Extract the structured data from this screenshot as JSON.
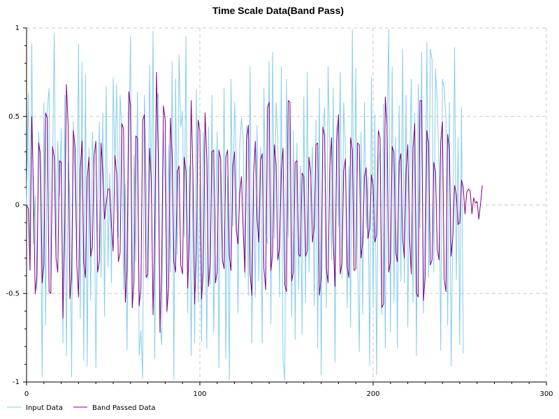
{
  "chart_data": {
    "type": "line",
    "title": "Time Scale Data(Band Pass)",
    "xlabel": "",
    "ylabel": "",
    "xlim": [
      0,
      300
    ],
    "ylim": [
      -1,
      1
    ],
    "x_ticks": [
      "0",
      "100",
      "200",
      "300"
    ],
    "y_ticks": [
      "-1",
      "-0.5",
      "0",
      "0.5",
      "1"
    ],
    "grid": true,
    "legend_position": "bottom-left",
    "x_start": 0,
    "x_step": 1,
    "series": [
      {
        "name": "Input Data",
        "color": "#87ceeb",
        "values": [
          0.0,
          0.63,
          -0.36,
          0.91,
          -0.22,
          0.05,
          -0.48,
          0.41,
          0.12,
          -0.97,
          0.58,
          -0.68,
          0.54,
          0.66,
          -0.41,
          0.22,
          0.97,
          -0.28,
          0.36,
          0.05,
          0.43,
          -0.78,
          0.62,
          -0.85,
          0.24,
          0.05,
          -0.97,
          0.47,
          0.12,
          -0.31,
          0.91,
          -0.64,
          0.81,
          -0.88,
          0.74,
          -0.91,
          0.32,
          -0.54,
          0.41,
          0.12,
          -0.92,
          -0.06,
          0.47,
          -0.41,
          0.52,
          -0.63,
          0.67,
          -0.35,
          0.18,
          -0.44,
          0.72,
          0.23,
          0.68,
          -0.18,
          0.62,
          0.41,
          -0.48,
          0.12,
          -0.82,
          0.34,
          0.95,
          -0.58,
          0.28,
          -0.32,
          0.64,
          -0.85,
          -0.71,
          -0.98,
          0.62,
          0.18,
          -0.42,
          0.79,
          0.01,
          0.98,
          -0.87,
          0.58,
          0.63,
          -0.66,
          -0.79,
          0.41,
          0.12,
          -0.61,
          0.34,
          -0.38,
          0.81,
          -0.99,
          0.71,
          -0.28,
          0.85,
          0.44,
          0.53,
          -0.18,
          0.95,
          -0.61,
          0.22,
          -0.85,
          0.21,
          -0.78,
          0.65,
          -0.55,
          0.12,
          -0.77,
          0.41,
          0.01,
          -0.81,
          0.44,
          -0.45,
          0.62,
          -0.72,
          -0.11,
          0.41,
          -0.92,
          0.28,
          -0.33,
          0.66,
          -0.87,
          0.16,
          -0.99,
          0.71,
          -0.12,
          0.58,
          0.26,
          -0.61,
          0.33,
          0.49,
          0.38,
          -0.41,
          0.45,
          -0.51,
          0.78,
          -0.78,
          0.18,
          -0.52,
          0.45,
          -0.43,
          0.33,
          -0.78,
          0.66,
          -0.16,
          -0.22,
          0.81,
          -0.67,
          0.86,
          -0.19,
          0.58,
          0.37,
          -0.52,
          0.78,
          -0.88,
          -0.99,
          0.71,
          -0.18,
          0.58,
          -0.63,
          0.42,
          -0.76,
          0.35,
          -0.48,
          0.22,
          -0.73,
          0.61,
          -0.55,
          0.75,
          -0.38,
          0.12,
          0.33,
          -0.57,
          0.48,
          -0.81,
          0.66,
          -0.96,
          0.41,
          0.55,
          -0.58,
          0.78,
          0.28,
          -0.31,
          0.66,
          -0.89,
          0.45,
          -0.12,
          0.75,
          -0.41,
          0.58,
          0.32,
          -0.58,
          0.22,
          -0.69,
          0.99,
          -0.33,
          0.77,
          -0.28,
          -0.83,
          0.41,
          -0.62,
          0.58,
          -0.13,
          0.16,
          -0.91,
          0.72,
          -0.58,
          0.51,
          -0.96,
          0.22,
          0.31,
          -0.62,
          0.57,
          -0.81,
          0.41,
          0.99,
          -0.72,
          0.78,
          -0.55,
          0.38,
          -0.81,
          0.56,
          -0.43,
          0.88,
          -0.44,
          0.62,
          -0.69,
          0.14,
          0.71,
          -0.55,
          0.52,
          -0.85,
          0.68,
          -0.13,
          0.86,
          -0.61,
          -0.08,
          0.92,
          -0.41,
          0.88,
          0.82,
          -0.38,
          0.77,
          0.58,
          0.24,
          -0.82,
          0.71,
          0.66,
          0.49,
          -0.68,
          0.58,
          -0.91,
          -0.12,
          0.89,
          -0.42,
          0.38,
          -0.79,
          0.55,
          -0.84
        ]
      },
      {
        "name": "Band Passed Data",
        "color": "#800080",
        "values": [
          0.0,
          -0.02,
          -0.37,
          0.5,
          0.08,
          -0.5,
          -0.4,
          0.35,
          0.29,
          -0.44,
          -0.34,
          0.52,
          0.49,
          -0.49,
          -0.5,
          0.33,
          0.27,
          -0.3,
          -0.38,
          0.25,
          0.24,
          -0.64,
          -0.16,
          0.68,
          0.45,
          -0.53,
          -0.41,
          0.42,
          0.33,
          -0.34,
          -0.52,
          0.2,
          0.36,
          -0.32,
          -0.41,
          0.15,
          0.27,
          -0.29,
          -0.24,
          0.28,
          0.36,
          -0.38,
          -0.32,
          0.35,
          0.19,
          -0.08,
          0.01,
          0.09,
          0.09,
          -0.12,
          -0.26,
          0.28,
          0.17,
          -0.32,
          -0.27,
          0.46,
          0.43,
          -0.55,
          -0.37,
          0.64,
          0.56,
          -0.58,
          -0.43,
          0.39,
          0.38,
          -0.57,
          -0.47,
          0.48,
          0.51,
          -0.41,
          -0.39,
          0.32,
          0.13,
          -0.62,
          -0.17,
          0.75,
          0.28,
          -0.72,
          -0.33,
          0.56,
          0.48,
          -0.6,
          -0.47,
          0.49,
          0.28,
          -0.32,
          -0.38,
          0.19,
          0.22,
          -0.34,
          -0.39,
          0.27,
          0.19,
          -0.47,
          -0.16,
          0.59,
          0.18,
          -0.56,
          -0.28,
          0.48,
          0.42,
          -0.53,
          -0.38,
          0.52,
          0.26,
          -0.46,
          -0.32,
          0.3,
          0.31,
          -0.44,
          -0.38,
          0.31,
          0.26,
          -0.31,
          -0.36,
          0.27,
          0.31,
          -0.29,
          -0.37,
          0.22,
          0.3,
          -0.14,
          -0.22,
          0.06,
          0.16,
          -0.14,
          -0.38,
          0.37,
          0.45,
          -0.39,
          -0.51,
          0.17,
          0.36,
          -0.08,
          -0.21,
          0.25,
          0.29,
          -0.36,
          -0.48,
          0.55,
          0.58,
          -0.37,
          -0.28,
          0.34,
          0.23,
          -0.31,
          -0.24,
          0.19,
          0.32,
          -0.45,
          -0.49,
          0.59,
          0.58,
          -0.43,
          -0.38,
          0.24,
          0.25,
          -0.28,
          -0.29,
          0.18,
          0.16,
          -0.29,
          -0.26,
          0.27,
          0.18,
          -0.21,
          -0.12,
          0.34,
          0.35,
          -0.51,
          -0.41,
          0.44,
          0.39,
          -0.36,
          -0.44,
          0.22,
          0.38,
          -0.22,
          -0.46,
          0.36,
          0.51,
          -0.39,
          -0.33,
          0.19,
          0.26,
          -0.35,
          -0.41,
          0.38,
          0.31,
          -0.37,
          -0.36,
          0.35,
          0.34,
          -0.3,
          -0.21,
          0.16,
          0.21,
          -0.19,
          -0.13,
          0.17,
          0.11,
          -0.21,
          -0.17,
          0.42,
          0.38,
          -0.58,
          -0.56,
          0.61,
          0.45,
          -0.38,
          -0.32,
          0.33,
          0.3,
          -0.27,
          -0.32,
          0.24,
          0.29,
          -0.19,
          -0.3,
          0.19,
          0.34,
          -0.18,
          -0.39,
          0.32,
          0.46,
          -0.5,
          -0.52,
          0.59,
          0.59,
          -0.54,
          -0.41,
          0.42,
          0.35,
          -0.34,
          -0.31,
          0.24,
          0.19,
          -0.25,
          -0.31,
          0.36,
          0.47,
          -0.42,
          -0.49,
          0.4,
          0.31,
          -0.29,
          -0.18,
          0.11,
          0.06,
          -0.11,
          -0.1,
          0.14,
          0.1,
          -0.05,
          0.07,
          0.09,
          0.08,
          -0.05,
          0.04,
          0.01,
          0.02,
          -0.08,
          0.01,
          0.11
        ]
      }
    ]
  }
}
